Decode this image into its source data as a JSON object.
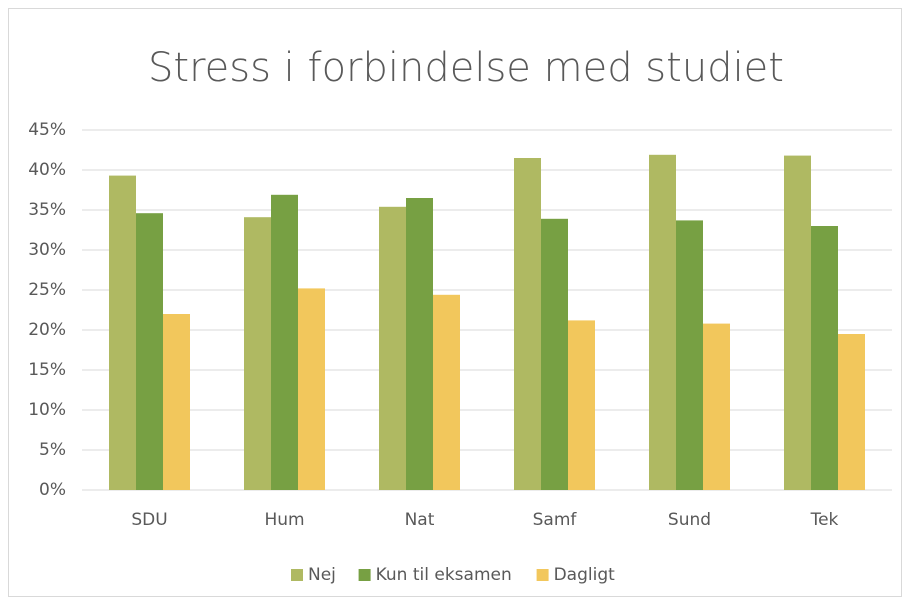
{
  "chart_data": {
    "type": "bar",
    "title": "Stress i forbindelse med studiet",
    "categories": [
      "SDU",
      "Hum",
      "Nat",
      "Samf",
      "Sund",
      "Tek"
    ],
    "series": [
      {
        "name": "Nej",
        "color": "#afb962",
        "values": [
          39.3,
          34.1,
          35.4,
          41.5,
          41.9,
          41.8
        ]
      },
      {
        "name": "Kun til eksamen",
        "color": "#77a043",
        "values": [
          34.6,
          36.9,
          36.5,
          33.9,
          33.7,
          33.0
        ]
      },
      {
        "name": "Dagligt",
        "color": "#f2c75c",
        "values": [
          22.0,
          25.2,
          24.4,
          21.2,
          20.8,
          19.5
        ]
      }
    ],
    "ylim": [
      0,
      45
    ],
    "yticks": [
      {
        "value": 0,
        "label": "0%"
      },
      {
        "value": 5,
        "label": "5%"
      },
      {
        "value": 10,
        "label": "10%"
      },
      {
        "value": 15,
        "label": "15%"
      },
      {
        "value": 20,
        "label": "20%"
      },
      {
        "value": 25,
        "label": "25%"
      },
      {
        "value": 30,
        "label": "30%"
      },
      {
        "value": 35,
        "label": "35%"
      },
      {
        "value": 40,
        "label": "40%"
      },
      {
        "value": 45,
        "label": "45%"
      }
    ],
    "grid": true,
    "legend": "bottom"
  }
}
